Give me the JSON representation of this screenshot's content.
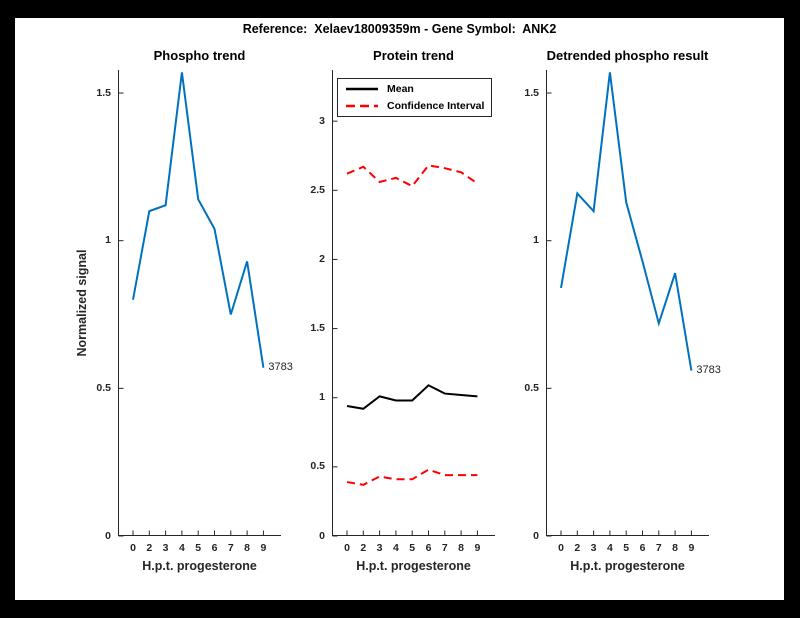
{
  "figure": {
    "suptitle": "Reference:  Xelaev18009359m - Gene Symbol:  ANK2"
  },
  "colors": {
    "line_blue": "#0072BD",
    "mean_black": "#000000",
    "ci_red": "#FF0000",
    "axis_gray": "#262626"
  },
  "chart_data": [
    {
      "type": "line",
      "title": "Phospho trend",
      "xlabel": "H.p.t. progesterone",
      "ylabel": "Normalized signal",
      "xtick_labels": [
        "0",
        "2",
        "3",
        "4",
        "5",
        "6",
        "7",
        "8",
        "9"
      ],
      "yticks": [
        0,
        0.5,
        1,
        1.5
      ],
      "ylim": [
        0,
        1.578
      ],
      "grid": false,
      "legend_position": "none",
      "series": [
        {
          "name": "phospho-trend",
          "color": "#0072BD",
          "style": "solid",
          "values": [
            0.8,
            1.1,
            1.12,
            1.57,
            1.14,
            1.04,
            0.75,
            0.93,
            0.57
          ]
        }
      ],
      "annotation": {
        "text": "3783",
        "at_index": 8
      }
    },
    {
      "type": "line",
      "title": "Protein trend",
      "xlabel": "H.p.t. progesterone",
      "ylabel": "",
      "xtick_labels": [
        "0",
        "2",
        "3",
        "4",
        "5",
        "6",
        "7",
        "8",
        "9"
      ],
      "yticks": [
        0,
        0.5,
        1,
        1.5,
        2,
        2.5,
        3
      ],
      "ylim": [
        0,
        3.37
      ],
      "grid": false,
      "legend_position": "top-left",
      "legend": {
        "mean_label": "Mean",
        "ci_label": "Confidence Interval"
      },
      "series": [
        {
          "name": "mean",
          "color": "#000000",
          "style": "solid",
          "values": [
            0.94,
            0.92,
            1.01,
            0.98,
            0.98,
            1.09,
            1.03,
            1.02,
            1.01
          ]
        },
        {
          "name": "ci-upper",
          "color": "#FF0000",
          "style": "dashed",
          "values": [
            2.62,
            2.67,
            2.56,
            2.59,
            2.53,
            2.68,
            2.66,
            2.63,
            2.55
          ]
        },
        {
          "name": "ci-lower",
          "color": "#FF0000",
          "style": "dashed",
          "values": [
            0.39,
            0.37,
            0.43,
            0.41,
            0.41,
            0.48,
            0.44,
            0.44,
            0.44
          ]
        }
      ]
    },
    {
      "type": "line",
      "title": "Detrended phospho result",
      "xlabel": "H.p.t. progesterone",
      "ylabel": "",
      "xtick_labels": [
        "0",
        "2",
        "3",
        "4",
        "5",
        "6",
        "7",
        "8",
        "9"
      ],
      "yticks": [
        0,
        0.5,
        1,
        1.5
      ],
      "ylim": [
        0,
        1.578
      ],
      "grid": false,
      "legend_position": "none",
      "series": [
        {
          "name": "detrended-phospho",
          "color": "#0072BD",
          "style": "solid",
          "values": [
            0.84,
            1.16,
            1.1,
            1.57,
            1.13,
            0.93,
            0.72,
            0.89,
            0.56
          ]
        }
      ],
      "annotation": {
        "text": "3783",
        "at_index": 8
      }
    }
  ]
}
